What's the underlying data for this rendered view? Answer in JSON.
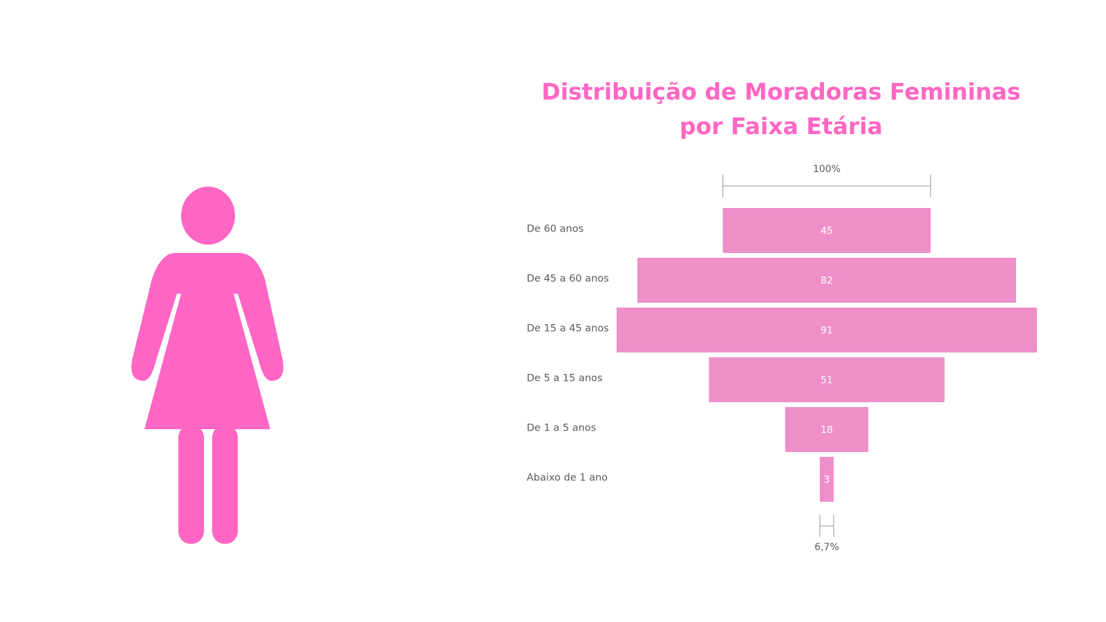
{
  "colors": {
    "figure": "#ff66c4",
    "title": "#ff66c4",
    "bar": "#ee8fca",
    "bar_label": "#ffffff",
    "text": "#595959",
    "bracket": "#a6a6a6"
  },
  "icons": {
    "figure": "woman-icon"
  },
  "chart_data": {
    "type": "bar",
    "orientation": "horizontal-funnel",
    "title": [
      "Distribuição de Moradoras Femininas",
      "por Faixa Etária"
    ],
    "categories": [
      "De 60 anos",
      "De 45 a 60 anos",
      "De 15 a 45 anos",
      "De 5 a 15 anos",
      "De 1 a 5 anos",
      "Abaixo de 1 ano"
    ],
    "values": [
      45,
      82,
      91,
      51,
      18,
      3
    ],
    "first_stage_percent_label": "100%",
    "last_stage_percent_label": "6,7%",
    "grid": false,
    "legend": "none"
  }
}
